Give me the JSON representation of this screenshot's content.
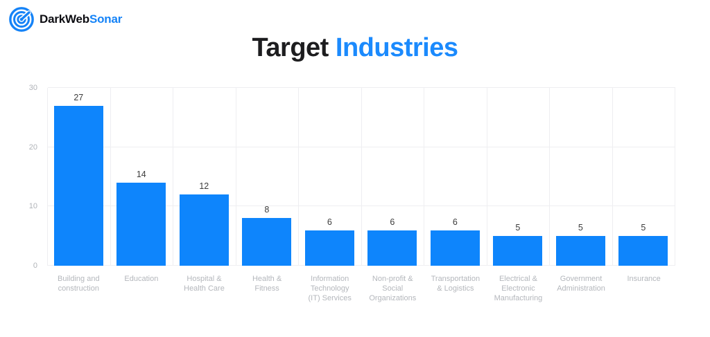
{
  "header": {
    "logo_text_dark": "DarkWeb",
    "logo_text_accent": "Sonar"
  },
  "title": {
    "part1": "Target",
    "part2": "Industries"
  },
  "colors": {
    "bar_blue": "#0e85fc",
    "title_accent_blue": "#1b8afd",
    "logo_blue": "#1583f7",
    "title_dark": "#1d1d1f",
    "gridline": "#eeeef1",
    "axis_tick_label": "#b0b3b8",
    "category_label": "#b4b7bc",
    "value_label": "#3c3c3c"
  },
  "chart_data": {
    "type": "bar",
    "title": "Target Industries",
    "categories": [
      "Building and construction",
      "Education",
      "Hospital & Health Care",
      "Health & Fitness",
      "Information Technology (IT) Services",
      "Non-profit & Social Organizations",
      "Transportation & Logistics",
      "Electrical & Electronic Manufacturing",
      "Government Administration",
      "Insurance"
    ],
    "values": [
      27,
      14,
      12,
      8,
      6,
      6,
      6,
      5,
      5,
      5
    ],
    "xlabel": "",
    "ylabel": "",
    "ylim": [
      0,
      30
    ],
    "yticks": [
      0,
      10,
      20,
      30
    ],
    "grid": true,
    "legend": false,
    "bar_color": "#0e85fc"
  }
}
